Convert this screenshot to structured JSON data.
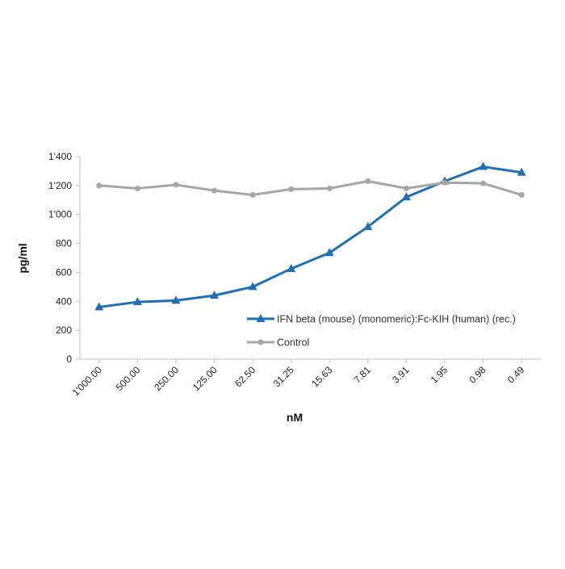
{
  "chart_data": {
    "type": "line",
    "title": "",
    "xlabel": "nM",
    "ylabel": "pg/ml",
    "categories": [
      "1'000.00",
      "500.00",
      "250.00",
      "125.00",
      "62.50",
      "31.25",
      "15.63",
      "7.81",
      "3.91",
      "1.95",
      "0.98",
      "0.49"
    ],
    "ylim": [
      0,
      1400
    ],
    "yticks": [
      0,
      200,
      400,
      600,
      800,
      1000,
      1200,
      1400
    ],
    "ytick_labels": [
      "0",
      "200",
      "400",
      "600",
      "800",
      "1'000",
      "1'200",
      "1'400"
    ],
    "grid": false,
    "legend_position": "right",
    "series": [
      {
        "name": "IFN beta (mouse) (monomeric):Fc-KIH (human) (rec.)",
        "color": "#1f6fb5",
        "marker": "triangle",
        "values": [
          360,
          395,
          405,
          440,
          500,
          625,
          735,
          915,
          1120,
          1230,
          1330,
          1290
        ]
      },
      {
        "name": "Control",
        "color": "#a6a6a6",
        "marker": "circle",
        "values": [
          1200,
          1180,
          1205,
          1165,
          1135,
          1175,
          1180,
          1230,
          1180,
          1220,
          1215,
          1135
        ]
      }
    ]
  }
}
